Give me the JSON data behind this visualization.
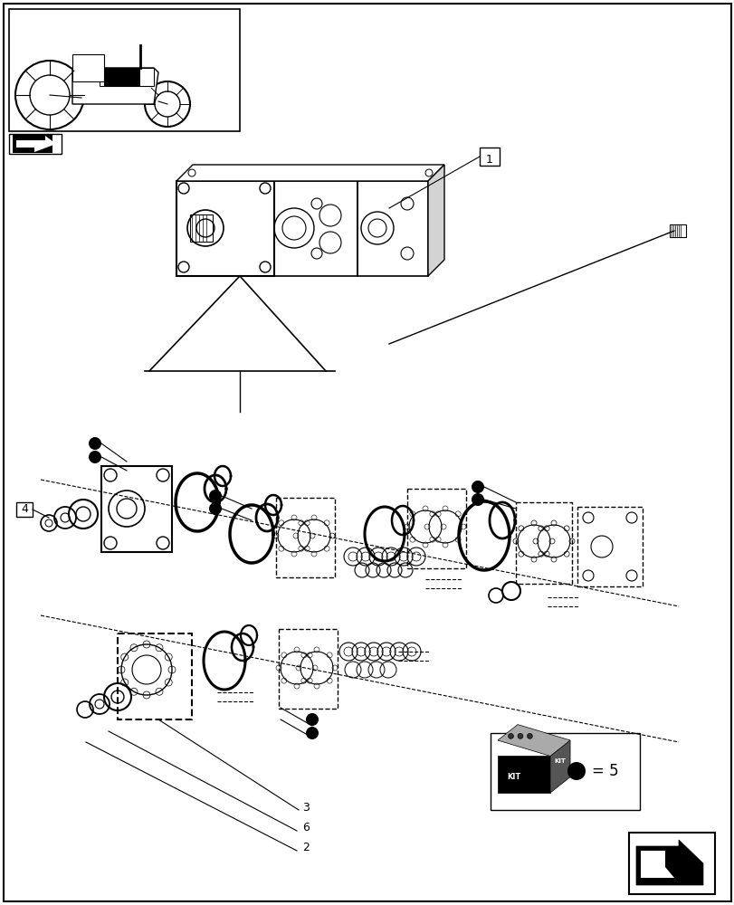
{
  "bg_color": "#ffffff",
  "border_color": "#000000",
  "line_color": "#000000"
}
